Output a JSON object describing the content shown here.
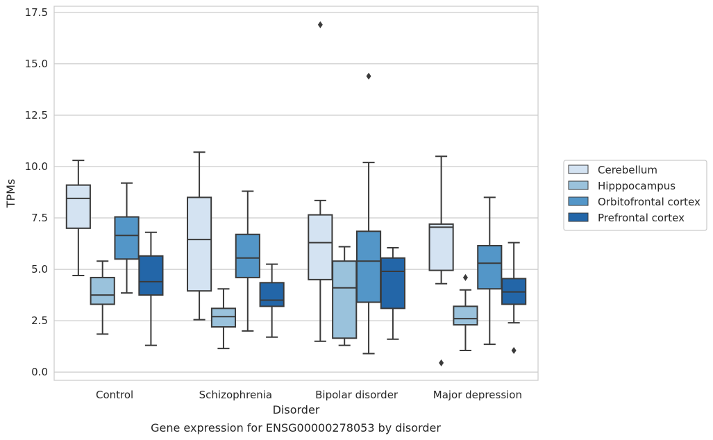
{
  "chart_data": {
    "type": "box",
    "xlabel": "Disorder",
    "ylabel": "TPMs",
    "caption": "Gene expression for ENSG00000278053 by disorder",
    "ylim": [
      -0.4,
      17.8
    ],
    "yticks": [
      0.0,
      2.5,
      5.0,
      7.5,
      10.0,
      12.5,
      15.0,
      17.5
    ],
    "ytick_labels": [
      "0.0",
      "2.5",
      "5.0",
      "7.5",
      "10.0",
      "12.5",
      "15.0",
      "17.5"
    ],
    "grid": "horizontal",
    "legend_position": "right",
    "categories": [
      "Control",
      "Schizophrenia",
      "Bipolar disorder",
      "Major depression"
    ],
    "series": [
      {
        "name": "Cerebellum",
        "color": "#d4e3f2",
        "boxes": [
          {
            "whislo": 4.7,
            "q1": 7.0,
            "med": 8.45,
            "q3": 9.1,
            "whishi": 10.3,
            "fliers": []
          },
          {
            "whislo": 2.55,
            "q1": 3.95,
            "med": 6.45,
            "q3": 8.5,
            "whishi": 10.7,
            "fliers": []
          },
          {
            "whislo": 1.5,
            "q1": 4.5,
            "med": 6.3,
            "q3": 7.65,
            "whishi": 8.35,
            "fliers": [
              16.9
            ]
          },
          {
            "whislo": 4.3,
            "q1": 4.95,
            "med": 7.05,
            "q3": 7.2,
            "whishi": 10.5,
            "fliers": [
              0.45
            ]
          }
        ]
      },
      {
        "name": "Hipppocampus",
        "color": "#9ac2dc",
        "boxes": [
          {
            "whislo": 1.85,
            "q1": 3.3,
            "med": 3.75,
            "q3": 4.6,
            "whishi": 5.4,
            "fliers": []
          },
          {
            "whislo": 1.15,
            "q1": 2.2,
            "med": 2.7,
            "q3": 3.1,
            "whishi": 4.05,
            "fliers": []
          },
          {
            "whislo": 1.3,
            "q1": 1.65,
            "med": 4.1,
            "q3": 5.4,
            "whishi": 6.1,
            "fliers": []
          },
          {
            "whislo": 1.05,
            "q1": 2.3,
            "med": 2.6,
            "q3": 3.2,
            "whishi": 4.0,
            "fliers": [
              4.6
            ]
          }
        ]
      },
      {
        "name": "Orbitofrontal cortex",
        "color": "#5396c8",
        "boxes": [
          {
            "whislo": 3.85,
            "q1": 5.5,
            "med": 6.65,
            "q3": 7.55,
            "whishi": 9.2,
            "fliers": []
          },
          {
            "whislo": 2.0,
            "q1": 4.6,
            "med": 5.55,
            "q3": 6.7,
            "whishi": 8.8,
            "fliers": []
          },
          {
            "whislo": 0.9,
            "q1": 3.4,
            "med": 5.4,
            "q3": 6.85,
            "whishi": 10.2,
            "fliers": [
              14.4
            ]
          },
          {
            "whislo": 1.35,
            "q1": 4.05,
            "med": 5.3,
            "q3": 6.15,
            "whishi": 8.5,
            "fliers": []
          }
        ]
      },
      {
        "name": "Prefrontal cortex",
        "color": "#2366a8",
        "boxes": [
          {
            "whislo": 1.3,
            "q1": 3.75,
            "med": 4.4,
            "q3": 5.65,
            "whishi": 6.8,
            "fliers": []
          },
          {
            "whislo": 1.7,
            "q1": 3.2,
            "med": 3.5,
            "q3": 4.35,
            "whishi": 5.25,
            "fliers": []
          },
          {
            "whislo": 1.6,
            "q1": 3.1,
            "med": 4.9,
            "q3": 5.55,
            "whishi": 6.05,
            "fliers": []
          },
          {
            "whislo": 2.4,
            "q1": 3.3,
            "med": 3.9,
            "q3": 4.55,
            "whishi": 6.3,
            "fliers": [
              1.05
            ]
          }
        ]
      }
    ]
  }
}
